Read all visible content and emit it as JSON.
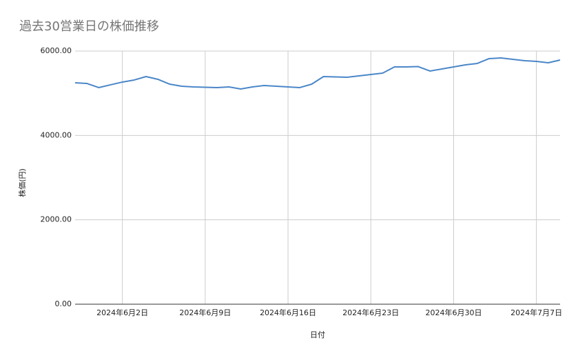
{
  "chart_data": {
    "type": "line",
    "title": "過去30営業日の株価推移",
    "x_label": "日付",
    "y_label": "株価(円)",
    "x": [
      "2024-05-29",
      "2024-05-30",
      "2024-05-31",
      "2024-06-01",
      "2024-06-02",
      "2024-06-03",
      "2024-06-04",
      "2024-06-05",
      "2024-06-06",
      "2024-06-07",
      "2024-06-08",
      "2024-06-09",
      "2024-06-10",
      "2024-06-11",
      "2024-06-12",
      "2024-06-13",
      "2024-06-14",
      "2024-06-15",
      "2024-06-16",
      "2024-06-17",
      "2024-06-18",
      "2024-06-19",
      "2024-06-20",
      "2024-06-21",
      "2024-06-22",
      "2024-06-23",
      "2024-06-24",
      "2024-06-25",
      "2024-06-26",
      "2024-06-27",
      "2024-06-28",
      "2024-06-29",
      "2024-06-30",
      "2024-07-01",
      "2024-07-02",
      "2024-07-03",
      "2024-07-04",
      "2024-07-05",
      "2024-07-06",
      "2024-07-07",
      "2024-07-08",
      "2024-07-09"
    ],
    "series": [
      {
        "color": "#4a86c8",
        "values": [
          5248,
          5232,
          5134,
          5200,
          5265,
          5314,
          5395,
          5330,
          5215,
          5167,
          5150,
          5142,
          5134,
          5150,
          5101,
          5150,
          5183,
          5167,
          5150,
          5134,
          5215,
          5395,
          5387,
          5379,
          5412,
          5445,
          5477,
          5624,
          5624,
          5632,
          5526,
          5575,
          5624,
          5673,
          5706,
          5821,
          5837,
          5804,
          5771,
          5755,
          5722,
          5788
        ]
      }
    ],
    "xlim": [
      "2024-05-29",
      "2024-07-09"
    ],
    "xticks": [
      {
        "value": "2024-06-02",
        "label": "2024年6月2日"
      },
      {
        "value": "2024-06-09",
        "label": "2024年6月9日"
      },
      {
        "value": "2024-06-16",
        "label": "2024年6月16日"
      },
      {
        "value": "2024-06-23",
        "label": "2024年6月23日"
      },
      {
        "value": "2024-06-30",
        "label": "2024年6月30日"
      },
      {
        "value": "2024-07-07",
        "label": "2024年7月7日"
      }
    ],
    "ylim": [
      0,
      6000
    ],
    "yticks": [
      {
        "value": 0,
        "label": "0.00"
      },
      {
        "value": 2000,
        "label": "2000.00"
      },
      {
        "value": 4000,
        "label": "4000.00"
      },
      {
        "value": 6000,
        "label": "6000.00"
      }
    ],
    "grid": true
  }
}
